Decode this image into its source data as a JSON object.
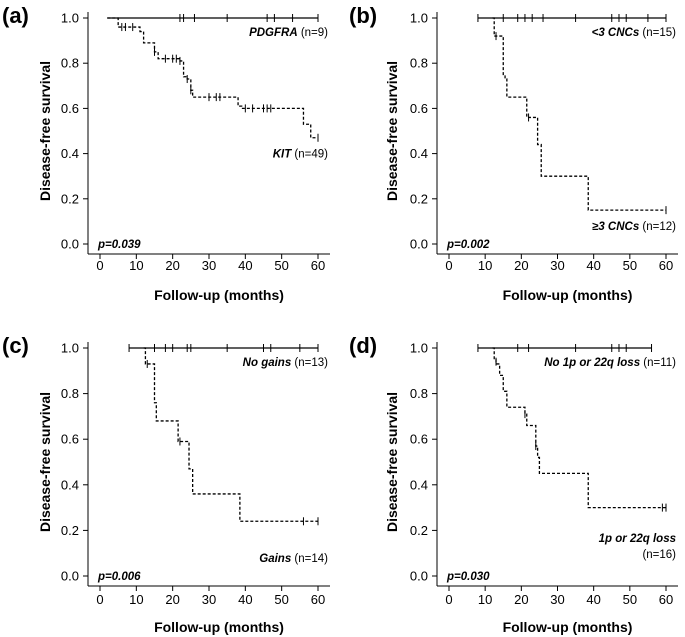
{
  "chart_data": [
    {
      "type": "line",
      "panel_label": "(a)",
      "xlabel": "Follow-up (months)",
      "ylabel": "Disease-free survival",
      "xlim": [
        0,
        60
      ],
      "ylim": [
        0,
        1.0
      ],
      "x_ticks": [
        "0",
        "10",
        "20",
        "30",
        "40",
        "50",
        "60"
      ],
      "y_ticks": [
        "0.0",
        "0.2",
        "0.4",
        "0.6",
        "0.8",
        "1.0"
      ],
      "p_value": "p=0.039",
      "series": [
        {
          "name": "PDGFRA",
          "n_label": "(n=9)",
          "style": "solid",
          "legend_pos": "top-right",
          "steps": [
            [
              2,
              1.0
            ],
            [
              60,
              1.0
            ]
          ],
          "censors": [
            [
              22,
              1.0
            ],
            [
              23,
              1.0
            ],
            [
              26,
              1.0
            ],
            [
              35,
              1.0
            ],
            [
              46,
              1.0
            ],
            [
              48,
              1.0
            ],
            [
              53,
              1.0
            ],
            [
              60,
              1.0
            ]
          ]
        },
        {
          "name": "KIT",
          "n_label": "(n=49)",
          "style": "dashed",
          "legend_pos": "middle-right",
          "steps": [
            [
              2,
              1.0
            ],
            [
              5,
              0.96
            ],
            [
              9,
              0.96
            ],
            [
              11,
              0.94
            ],
            [
              12,
              0.89
            ],
            [
              15,
              0.85
            ],
            [
              16,
              0.82
            ],
            [
              22,
              0.81
            ],
            [
              23,
              0.74
            ],
            [
              24,
              0.73
            ],
            [
              25,
              0.68
            ],
            [
              25.5,
              0.65
            ],
            [
              34,
              0.65
            ],
            [
              38,
              0.61
            ],
            [
              39,
              0.6
            ],
            [
              55,
              0.6
            ],
            [
              56,
              0.53
            ],
            [
              58,
              0.47
            ],
            [
              60,
              0.47
            ]
          ],
          "censors": [
            [
              6,
              0.96
            ],
            [
              7,
              0.96
            ],
            [
              9,
              0.96
            ],
            [
              15,
              0.85
            ],
            [
              18,
              0.82
            ],
            [
              20,
              0.82
            ],
            [
              21,
              0.82
            ],
            [
              22,
              0.81
            ],
            [
              24,
              0.73
            ],
            [
              25,
              0.68
            ],
            [
              30,
              0.65
            ],
            [
              32,
              0.65
            ],
            [
              33,
              0.65
            ],
            [
              40,
              0.6
            ],
            [
              42,
              0.6
            ],
            [
              45,
              0.6
            ],
            [
              46,
              0.6
            ],
            [
              47,
              0.6
            ],
            [
              60,
              0.47
            ]
          ]
        }
      ]
    },
    {
      "type": "line",
      "panel_label": "(b)",
      "xlabel": "Follow-up (months)",
      "ylabel": "Disease-free survival",
      "xlim": [
        0,
        60
      ],
      "ylim": [
        0,
        1.0
      ],
      "x_ticks": [
        "0",
        "10",
        "20",
        "30",
        "40",
        "50",
        "60"
      ],
      "y_ticks": [
        "0.0",
        "0.2",
        "0.4",
        "0.6",
        "0.8",
        "1.0"
      ],
      "p_value": "p=0.002",
      "series": [
        {
          "name": "<3 CNCs",
          "n_label": "(n=15)",
          "style": "solid",
          "legend_pos": "top-right",
          "steps": [
            [
              8,
              1.0
            ],
            [
              60,
              1.0
            ]
          ],
          "censors": [
            [
              8,
              1.0
            ],
            [
              15,
              1.0
            ],
            [
              19,
              1.0
            ],
            [
              21,
              1.0
            ],
            [
              23,
              1.0
            ],
            [
              26,
              1.0
            ],
            [
              35,
              1.0
            ],
            [
              45,
              1.0
            ],
            [
              47,
              1.0
            ],
            [
              49,
              1.0
            ],
            [
              55,
              1.0
            ],
            [
              60,
              1.0
            ]
          ]
        },
        {
          "name": "≥3 CNCs",
          "n_label": "(n=12)",
          "style": "dashed",
          "legend_pos": "bottom-right",
          "steps": [
            [
              12,
              1.0
            ],
            [
              12.5,
              0.92
            ],
            [
              14,
              0.92
            ],
            [
              15,
              0.75
            ],
            [
              15.5,
              0.73
            ],
            [
              16,
              0.65
            ],
            [
              21,
              0.65
            ],
            [
              21.5,
              0.56
            ],
            [
              24,
              0.56
            ],
            [
              24.5,
              0.44
            ],
            [
              25,
              0.44
            ],
            [
              25.5,
              0.3
            ],
            [
              38,
              0.3
            ],
            [
              38.5,
              0.15
            ],
            [
              60,
              0.15
            ]
          ],
          "censors": [
            [
              13,
              0.92
            ],
            [
              22,
              0.56
            ],
            [
              60,
              0.15
            ]
          ]
        }
      ]
    },
    {
      "type": "line",
      "panel_label": "(c)",
      "xlabel": "Follow-up (months)",
      "ylabel": "Disease-free survival",
      "xlim": [
        0,
        60
      ],
      "ylim": [
        0,
        1.0
      ],
      "x_ticks": [
        "0",
        "10",
        "20",
        "30",
        "40",
        "50",
        "60"
      ],
      "y_ticks": [
        "0.0",
        "0.2",
        "0.4",
        "0.6",
        "0.8",
        "1.0"
      ],
      "p_value": "p=0.006",
      "series": [
        {
          "name": "No gains",
          "n_label": "(n=13)",
          "style": "solid",
          "legend_pos": "top-right",
          "steps": [
            [
              8,
              1.0
            ],
            [
              60,
              1.0
            ]
          ],
          "censors": [
            [
              8,
              1.0
            ],
            [
              15,
              1.0
            ],
            [
              18,
              1.0
            ],
            [
              20,
              1.0
            ],
            [
              24,
              1.0
            ],
            [
              25,
              1.0
            ],
            [
              35,
              1.0
            ],
            [
              45,
              1.0
            ],
            [
              47,
              1.0
            ],
            [
              55,
              1.0
            ],
            [
              60,
              1.0
            ]
          ]
        },
        {
          "name": "Gains",
          "n_label": "(n=14)",
          "style": "dashed",
          "legend_pos": "bottom-right",
          "steps": [
            [
              12,
              1.0
            ],
            [
              12.5,
              0.93
            ],
            [
              14,
              0.93
            ],
            [
              15,
              0.76
            ],
            [
              15.5,
              0.68
            ],
            [
              21,
              0.68
            ],
            [
              21.5,
              0.59
            ],
            [
              24,
              0.59
            ],
            [
              24.5,
              0.47
            ],
            [
              25,
              0.47
            ],
            [
              25.5,
              0.36
            ],
            [
              38,
              0.36
            ],
            [
              38.5,
              0.24
            ],
            [
              60,
              0.24
            ]
          ],
          "censors": [
            [
              13,
              0.93
            ],
            [
              22,
              0.59
            ],
            [
              56,
              0.24
            ],
            [
              60,
              0.24
            ]
          ]
        }
      ]
    },
    {
      "type": "line",
      "panel_label": "(d)",
      "xlabel": "Follow-up (months)",
      "ylabel": "Disease-free survival",
      "xlim": [
        0,
        60
      ],
      "ylim": [
        0,
        1.0
      ],
      "x_ticks": [
        "0",
        "10",
        "20",
        "30",
        "40",
        "50",
        "60"
      ],
      "y_ticks": [
        "0.0",
        "0.2",
        "0.4",
        "0.6",
        "0.8",
        "1.0"
      ],
      "p_value": "p=0.030",
      "series": [
        {
          "name": "No 1p or 22q loss",
          "n_label": "(n=11)",
          "style": "solid",
          "legend_pos": "top-right",
          "steps": [
            [
              8,
              1.0
            ],
            [
              56,
              1.0
            ]
          ],
          "censors": [
            [
              8,
              1.0
            ],
            [
              19,
              1.0
            ],
            [
              22,
              1.0
            ],
            [
              35,
              1.0
            ],
            [
              45,
              1.0
            ],
            [
              47,
              1.0
            ],
            [
              49,
              1.0
            ],
            [
              56,
              1.0
            ]
          ]
        },
        {
          "name": "1p or 22q loss",
          "n_label": "(n=16)",
          "style": "dashed",
          "legend_pos": "bottom-right",
          "steps": [
            [
              12,
              1.0
            ],
            [
              12.5,
              0.95
            ],
            [
              13,
              0.93
            ],
            [
              14,
              0.88
            ],
            [
              15,
              0.81
            ],
            [
              16,
              0.74
            ],
            [
              20,
              0.74
            ],
            [
              21,
              0.71
            ],
            [
              21.5,
              0.66
            ],
            [
              23,
              0.66
            ],
            [
              24,
              0.57
            ],
            [
              24.5,
              0.52
            ],
            [
              25,
              0.45
            ],
            [
              38,
              0.45
            ],
            [
              38.5,
              0.3
            ],
            [
              60,
              0.3
            ]
          ],
          "censors": [
            [
              13,
              0.94
            ],
            [
              21,
              0.71
            ],
            [
              24,
              0.57
            ],
            [
              59,
              0.3
            ],
            [
              60,
              0.3
            ]
          ]
        }
      ]
    }
  ]
}
